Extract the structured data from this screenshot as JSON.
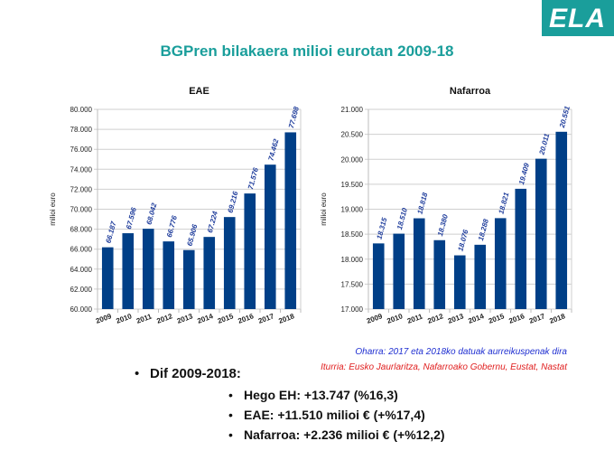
{
  "logo": {
    "text": "ELA",
    "color": "#1a9e9b"
  },
  "title": "BGPren bilakaera milioi eurotan 2009-18",
  "chart_data": [
    {
      "type": "bar",
      "title": "EAE",
      "ylabel": "milioi euro",
      "xlabel": "",
      "categories": [
        "2009",
        "2010",
        "2011",
        "2012",
        "2013",
        "2014",
        "2015",
        "2016",
        "2017",
        "2018"
      ],
      "values": [
        66187,
        67596,
        68042,
        66776,
        65906,
        67224,
        69216,
        71576,
        74462,
        77698
      ],
      "labels": [
        "66.187",
        "67.596",
        "68.042",
        "66.776",
        "65.906",
        "67.224",
        "69.216",
        "71.576",
        "74.462",
        "77.698"
      ],
      "ylim": [
        60000,
        80000
      ],
      "yticks": [
        "60.000",
        "62.000",
        "64.000",
        "66.000",
        "68.000",
        "70.000",
        "72.000",
        "74.000",
        "76.000",
        "78.000",
        "80.000"
      ],
      "grid": true,
      "bar_color": "#003f87",
      "label_color": "#1f3d9c"
    },
    {
      "type": "bar",
      "title": "Nafarroa",
      "ylabel": "milioi euro",
      "xlabel": "",
      "categories": [
        "2009",
        "2010",
        "2011",
        "2012",
        "2013",
        "2014",
        "2015",
        "2016",
        "2017",
        "2018"
      ],
      "values": [
        18315,
        18510,
        18818,
        18380,
        18076,
        18288,
        18821,
        19409,
        20011,
        20551
      ],
      "labels": [
        "18.315",
        "18.510",
        "18.818",
        "18.380",
        "18.076",
        "18.288",
        "18.821",
        "19.409",
        "20.011",
        "20.551"
      ],
      "ylim": [
        17000,
        21000
      ],
      "yticks": [
        "17.000",
        "17.500",
        "18.000",
        "18.500",
        "19.000",
        "19.500",
        "20.000",
        "20.500",
        "21.000"
      ],
      "grid": true,
      "bar_color": "#003f87",
      "label_color": "#1f3d9c"
    }
  ],
  "notes": {
    "oharra": "Oharra: 2017 eta 2018ko datuak aurreikuspenak dira",
    "iturria": "Iturria: Eusko Jaurlaritza, Nafarroako Gobernu, Eustat, Nastat"
  },
  "bullets": {
    "main": "Dif 2009-2018:",
    "sub": [
      "Hego EH: +13.747 (%16,3)",
      "EAE: +11.510 milioi € (+%17,4)",
      "Nafarroa: +2.236 milioi € (+%12,2)"
    ]
  }
}
